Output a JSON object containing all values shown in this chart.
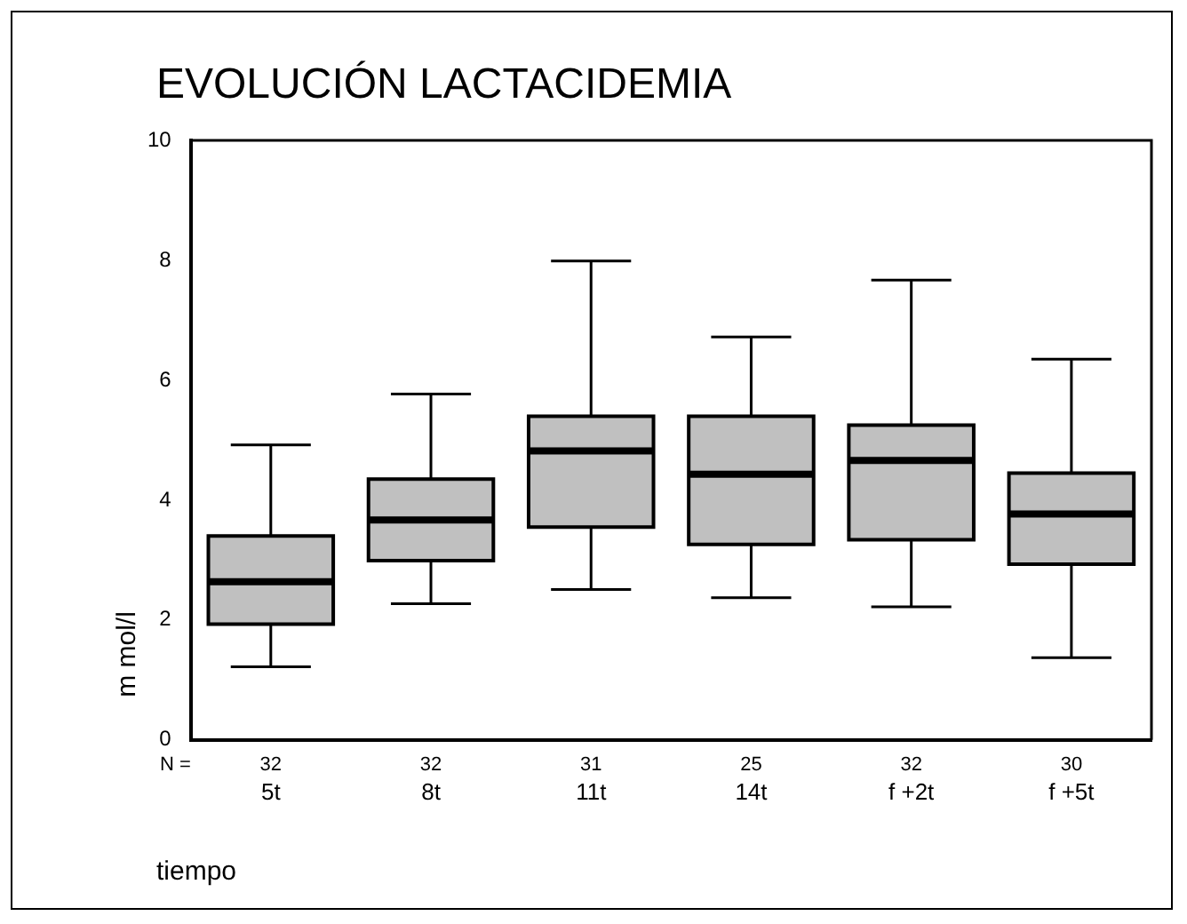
{
  "chart_data": {
    "type": "box",
    "title": "EVOLUCIÓN LACTACIDEMIA",
    "xlabel": "tiempo",
    "ylabel": "m mol/l",
    "categories": [
      "5t",
      "8t",
      "11t",
      "14t",
      "f +2t",
      "f +5t"
    ],
    "color": "#c0c0c0",
    "boxes": [
      {
        "low": 1.22,
        "q1": 1.93,
        "median": 2.64,
        "q3": 3.4,
        "high": 4.92
      },
      {
        "low": 2.27,
        "q1": 2.99,
        "median": 3.67,
        "q3": 4.35,
        "high": 5.77
      },
      {
        "low": 2.51,
        "q1": 3.55,
        "median": 4.82,
        "q3": 5.4,
        "high": 7.99
      },
      {
        "low": 2.37,
        "q1": 3.26,
        "median": 4.43,
        "q3": 5.4,
        "high": 6.72
      },
      {
        "low": 2.22,
        "q1": 3.34,
        "median": 4.66,
        "q3": 5.25,
        "high": 7.67
      },
      {
        "low": 1.37,
        "q1": 2.93,
        "median": 3.77,
        "q3": 4.45,
        "high": 6.35
      }
    ],
    "ylim": [
      0,
      10
    ],
    "yticks": [
      0,
      2,
      4,
      6,
      8,
      10
    ],
    "grid": false,
    "legend": false,
    "annotations": [
      "N =",
      "32",
      "32",
      "31",
      "25",
      "32",
      "30"
    ]
  }
}
